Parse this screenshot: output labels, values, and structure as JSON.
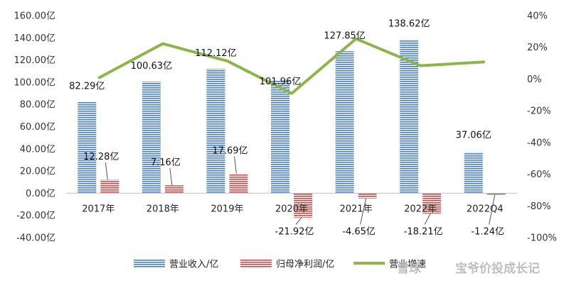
{
  "chart_data": {
    "type": "bar",
    "categories": [
      "2017年",
      "2018年",
      "2019年",
      "2020年",
      "2021年",
      "2022年",
      "2022Q4"
    ],
    "series": [
      {
        "name": "营业收入/亿",
        "kind": "bar",
        "axis": "left",
        "color": "#4a7fc1",
        "values": [
          82.29,
          100.63,
          112.12,
          101.96,
          127.85,
          138.62,
          37.06
        ],
        "labels": [
          "82.29亿",
          "100.63亿",
          "112.12亿",
          "101.96亿",
          "127.85亿",
          "138.62亿",
          "37.06亿"
        ]
      },
      {
        "name": "归母净利润/亿",
        "kind": "bar",
        "axis": "left",
        "color": "#c0504d",
        "values": [
          12.28,
          7.16,
          17.69,
          -21.92,
          -4.65,
          -18.21,
          -1.24
        ],
        "labels": [
          "12.28亿",
          "7.16亿",
          "17.69亿",
          "-21.92亿",
          "-4.65亿",
          "-18.21亿",
          "-1.24亿"
        ]
      },
      {
        "name": "营业增速",
        "kind": "line",
        "axis": "right",
        "color": "#8db54b",
        "values": [
          0.6,
          22.3,
          11.4,
          -9.1,
          25.4,
          8.4,
          10.8
        ]
      }
    ],
    "y_left": {
      "lim": [
        -40,
        160
      ],
      "ticks": [
        -40,
        -20,
        0,
        20,
        40,
        60,
        80,
        100,
        120,
        140,
        160
      ],
      "tick_labels": [
        "-40.00亿",
        "-20.00亿",
        "0.00亿",
        "20.00亿",
        "40.00亿",
        "60.00亿",
        "80.00亿",
        "100.00亿",
        "120.00亿",
        "140.00亿",
        "160.00亿"
      ]
    },
    "y_right": {
      "lim": [
        -100,
        40
      ],
      "ticks": [
        -100,
        -80,
        -60,
        -40,
        -20,
        0,
        20,
        40
      ],
      "tick_labels": [
        "-100%",
        "-80%",
        "-60%",
        "-40%",
        "-20%",
        "0%",
        "20%",
        "40%"
      ]
    },
    "legend_position": "bottom",
    "grid": false
  },
  "watermark": {
    "brand": "雪球",
    "text": "宝爷价投成长记"
  }
}
